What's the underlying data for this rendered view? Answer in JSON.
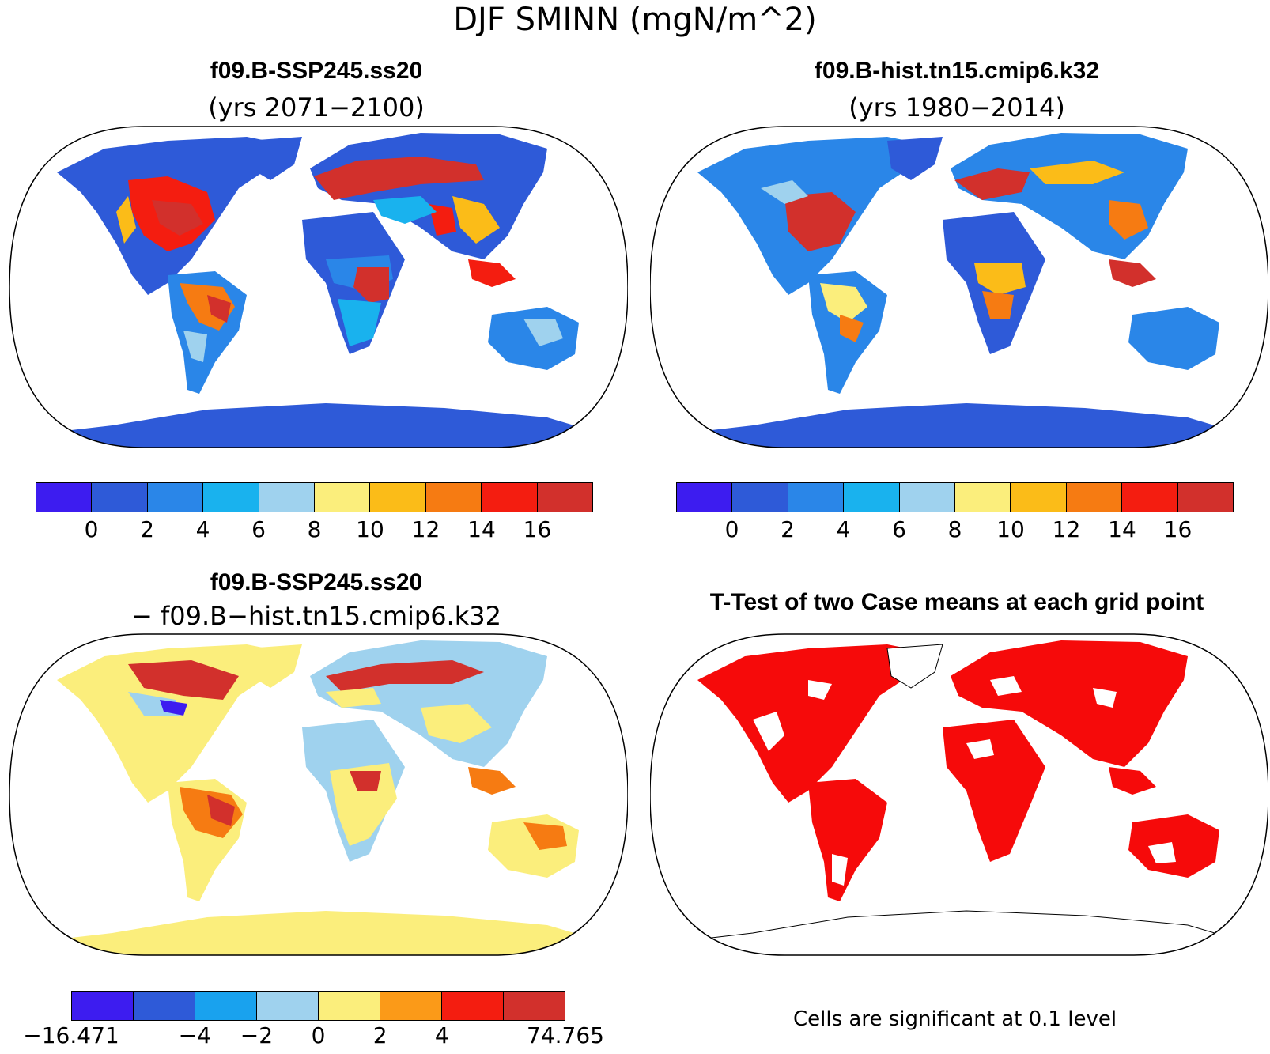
{
  "title": "DJF SMINN (mgN/m^2)",
  "panels": {
    "top_left": {
      "title": "f09.B-SSP245.ss20",
      "subtitle": "(yrs 2071−2100)"
    },
    "top_right": {
      "title": "f09.B-hist.tn15.cmip6.k32",
      "subtitle": "(yrs 1980−2014)"
    },
    "bottom_left": {
      "title": "f09.B-SSP245.ss20",
      "subtitle": "− f09.B−hist.tn15.cmip6.k32"
    },
    "bottom_right": {
      "title": "T-Test of two Case means at each grid point",
      "note": "Cells are significant at 0.1 level"
    }
  },
  "colorbar_abs": {
    "colors": [
      "#3d1cf0",
      "#2e5ad8",
      "#2a86e8",
      "#19b2ee",
      "#9fd2ee",
      "#fbee7c",
      "#fbbc18",
      "#f67b12",
      "#f41d10",
      "#d2302c"
    ],
    "ticks": [
      "0",
      "2",
      "4",
      "6",
      "8",
      "10",
      "12",
      "14",
      "16"
    ]
  },
  "colorbar_diff": {
    "colors": [
      "#3d1cf0",
      "#2e5ad8",
      "#19a2ee",
      "#9fd2ee",
      "#fbee7c",
      "#fb9a18",
      "#f41d10",
      "#d2302c"
    ],
    "ticks": [
      "−16.471",
      "−4",
      "−2",
      "0",
      "2",
      "4",
      "74.765"
    ]
  },
  "map_colors": {
    "ocean": "#ffffff",
    "sig": "#f60a0a"
  }
}
